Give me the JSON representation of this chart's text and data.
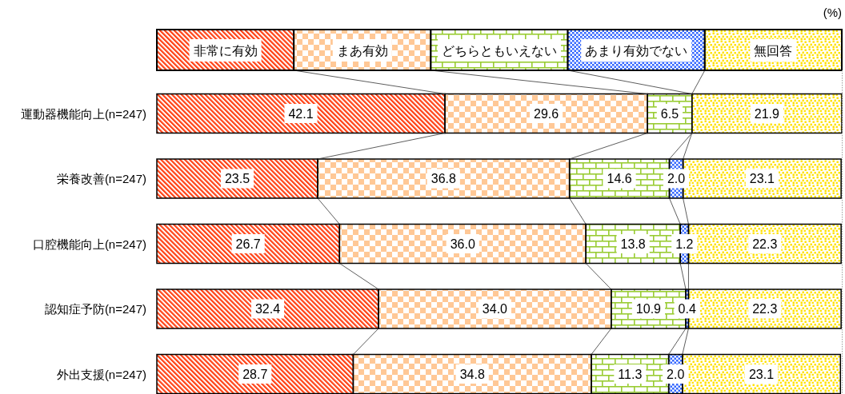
{
  "chart_data": {
    "type": "bar",
    "orientation": "horizontal",
    "stacked": true,
    "legend": "top",
    "categories": [
      "運動器機能向上(n=247)",
      "栄養改善(n=247)",
      "口腔機能向上(n=247)",
      "認知症予防(n=247)",
      "外出支援(n=247)"
    ],
    "series": [
      {
        "name": "非常に有効",
        "color": "#ff4013",
        "values": [
          42.1,
          23.5,
          26.7,
          32.4,
          28.7
        ],
        "value_labels": [
          "42.1",
          "23.5",
          "26.7",
          "32.4",
          "28.7"
        ]
      },
      {
        "name": "まあ有効",
        "color": "#ffc896",
        "values": [
          29.6,
          36.8,
          36.0,
          34.0,
          34.8
        ],
        "value_labels": [
          "29.6",
          "36.8",
          "36.0",
          "34.0",
          "34.8"
        ]
      },
      {
        "name": "どちらともいえない",
        "color": "#99cc33",
        "values": [
          6.5,
          14.6,
          13.8,
          10.9,
          11.3
        ],
        "value_labels": [
          "6.5",
          "14.6",
          "13.8",
          "10.9",
          "11.3"
        ]
      },
      {
        "name": "あまり有効でない",
        "color": "#3366ff",
        "values": [
          null,
          2.0,
          1.2,
          0.4,
          2.0
        ],
        "value_labels": [
          null,
          "2.0",
          "1.2",
          "0.4",
          "2.0"
        ]
      },
      {
        "name": "無回答",
        "color": "#ffe100",
        "values": [
          21.9,
          23.1,
          22.3,
          22.3,
          23.1
        ],
        "value_labels": [
          "21.9",
          "23.1",
          "22.3",
          "22.3",
          "23.1"
        ]
      }
    ],
    "annotations": [
      "(%)"
    ]
  }
}
